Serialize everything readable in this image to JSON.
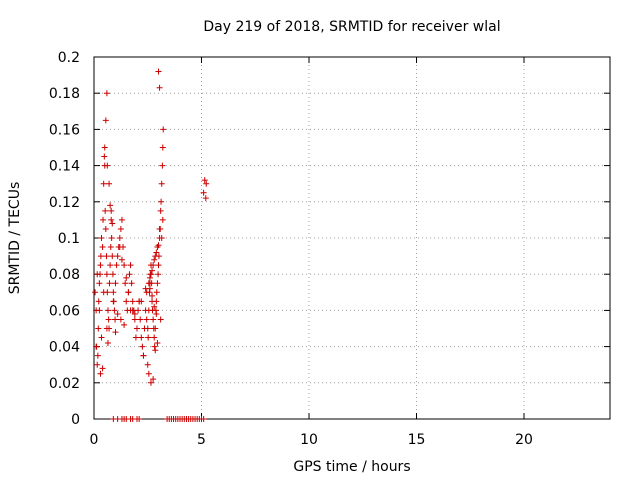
{
  "chart_data": {
    "type": "scatter",
    "title": "Day 219 of 2018, SRMTID for receiver wlal",
    "xlabel": "GPS time / hours",
    "ylabel": "SRMTID / TECUs",
    "xlim": [
      0,
      24
    ],
    "ylim": [
      0,
      0.2
    ],
    "x_ticks": [
      0,
      5,
      10,
      15,
      20
    ],
    "y_ticks": [
      0,
      0.02,
      0.04,
      0.06,
      0.08,
      0.1,
      0.12,
      0.14,
      0.16,
      0.18,
      0.2
    ],
    "grid": true,
    "legend": "none",
    "marker": "+",
    "color": "#cc0000",
    "series": [
      {
        "x": [
          0.05,
          0.1,
          0.12,
          0.15,
          0.18,
          0.2,
          0.22,
          0.25,
          0.28,
          0.3,
          0.32,
          0.35,
          0.4,
          0.42,
          0.45,
          0.48,
          0.5,
          0.52,
          0.55,
          0.58,
          0.6,
          0.62,
          0.65,
          0.68,
          0.7,
          0.72,
          0.75,
          0.78,
          0.8,
          0.82,
          0.85,
          0.88,
          0.9,
          0.92,
          0.95,
          0.98,
          1.0,
          1.05,
          1.1,
          1.15,
          1.2,
          1.25,
          1.3,
          1.35,
          1.4,
          1.45,
          1.5,
          1.55,
          1.6,
          1.65,
          1.7,
          1.75,
          1.8,
          1.85,
          1.9,
          1.95,
          2.0,
          2.05,
          2.1,
          2.15,
          2.2,
          2.25,
          2.3,
          2.35,
          2.4,
          2.45,
          2.5,
          2.52,
          2.55,
          2.58,
          2.6,
          2.62,
          2.65,
          2.68,
          2.7,
          2.72,
          2.75,
          2.78,
          2.8,
          2.82,
          2.85,
          2.88,
          2.9,
          2.92,
          2.95,
          2.98,
          3.0,
          3.02,
          3.05,
          3.08,
          3.1,
          3.12,
          3.15,
          3.18,
          3.2,
          3.22,
          5.1,
          5.15,
          5.2,
          5.22,
          0.5,
          0.55,
          0.6,
          0.62,
          0.7,
          0.75,
          0.8,
          0.85,
          1.2,
          1.3,
          1.5,
          1.6,
          2.6,
          2.7,
          2.8,
          2.9,
          3.0,
          3.05,
          0.3,
          0.4,
          0.65,
          1.0,
          1.4,
          1.9,
          2.3,
          2.5,
          2.55,
          2.65,
          2.75,
          2.85,
          2.95,
          3.1,
          0.15,
          0.25,
          0.45,
          0.9,
          1.1,
          1.7,
          2.1,
          2.4,
          2.6,
          2.7,
          2.8,
          2.9,
          3.0,
          3.15,
          0.1,
          0.35,
          0.6,
          1.25,
          1.8,
          2.2,
          2.45,
          2.55,
          2.65,
          2.75,
          2.85,
          2.95,
          3.05,
          3.2,
          1.1,
          1.4,
          1.8,
          2.0,
          2.1,
          3.4,
          3.5,
          3.6,
          3.7,
          3.8,
          3.9,
          4.0,
          4.1,
          4.2,
          4.3,
          4.4,
          4.5,
          4.6,
          4.7,
          4.8,
          4.9,
          5.0,
          5.1,
          0.9,
          1.3,
          1.5,
          1.7
        ],
        "y": [
          0.07,
          0.06,
          0.04,
          0.03,
          0.035,
          0.05,
          0.065,
          0.06,
          0.08,
          0.085,
          0.09,
          0.1,
          0.095,
          0.11,
          0.13,
          0.145,
          0.14,
          0.115,
          0.105,
          0.09,
          0.08,
          0.07,
          0.06,
          0.055,
          0.05,
          0.075,
          0.085,
          0.095,
          0.11,
          0.1,
          0.09,
          0.08,
          0.07,
          0.065,
          0.06,
          0.055,
          0.075,
          0.085,
          0.09,
          0.095,
          0.1,
          0.105,
          0.11,
          0.095,
          0.085,
          0.075,
          0.065,
          0.06,
          0.07,
          0.08,
          0.085,
          0.075,
          0.065,
          0.06,
          0.055,
          0.045,
          0.05,
          0.06,
          0.065,
          0.055,
          0.045,
          0.04,
          0.035,
          0.05,
          0.06,
          0.055,
          0.05,
          0.045,
          0.06,
          0.07,
          0.075,
          0.08,
          0.085,
          0.075,
          0.065,
          0.06,
          0.055,
          0.05,
          0.045,
          0.04,
          0.05,
          0.06,
          0.065,
          0.07,
          0.075,
          0.08,
          0.085,
          0.09,
          0.1,
          0.105,
          0.115,
          0.12,
          0.13,
          0.14,
          0.15,
          0.16,
          0.125,
          0.132,
          0.122,
          0.13,
          0.15,
          0.165,
          0.18,
          0.14,
          0.13,
          0.118,
          0.115,
          0.108,
          0.095,
          0.088,
          0.078,
          0.07,
          0.072,
          0.068,
          0.062,
          0.058,
          0.192,
          0.183,
          0.025,
          0.028,
          0.042,
          0.048,
          0.052,
          0.058,
          0.035,
          0.03,
          0.025,
          0.02,
          0.022,
          0.038,
          0.042,
          0.055,
          0.08,
          0.075,
          0.07,
          0.065,
          0.058,
          0.06,
          0.065,
          0.072,
          0.078,
          0.082,
          0.088,
          0.092,
          0.096,
          0.1,
          0.04,
          0.045,
          0.05,
          0.055,
          0.06,
          0.065,
          0.07,
          0.075,
          0.08,
          0.085,
          0.09,
          0.095,
          0.105,
          0.11,
          0,
          0,
          0,
          0,
          0,
          0,
          0,
          0,
          0,
          0,
          0,
          0,
          0,
          0,
          0,
          0,
          0,
          0,
          0,
          0,
          0,
          0,
          0,
          0,
          0,
          0,
          0
        ]
      }
    ]
  }
}
